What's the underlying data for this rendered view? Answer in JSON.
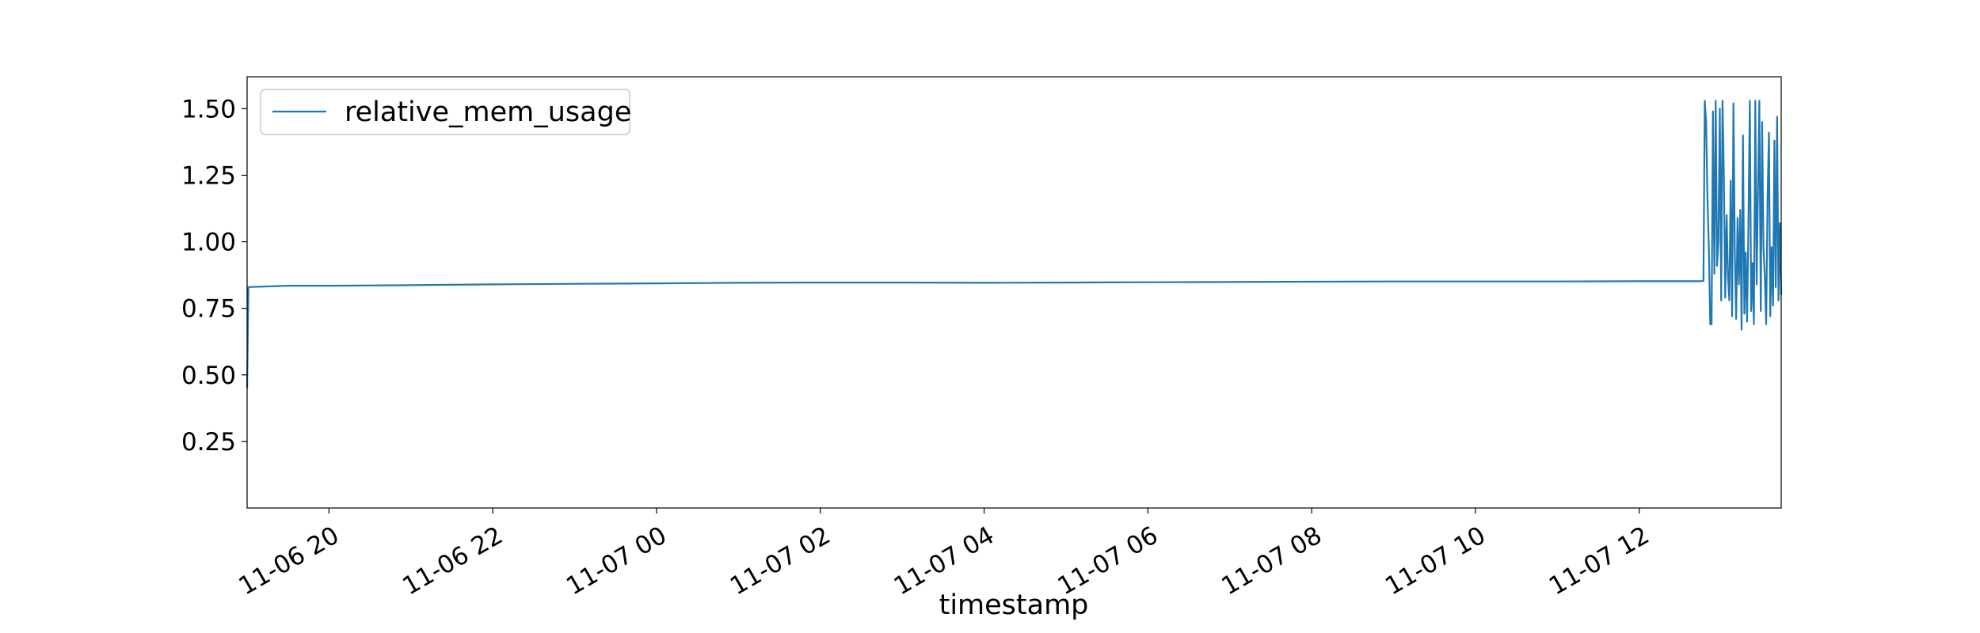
{
  "chart_data": {
    "type": "line",
    "title": "",
    "xlabel": "timestamp",
    "ylabel": "",
    "xlim": [
      "2024-11-06 19:00",
      "2024-11-07 13:44"
    ],
    "ylim": [
      0.0,
      1.62
    ],
    "grid": false,
    "legend": {
      "position": "top-left",
      "entries": [
        "relative_mem_usage"
      ]
    },
    "x_ticks": [
      {
        "value": "2024-11-06 20:00",
        "label": "11-06 20"
      },
      {
        "value": "2024-11-06 22:00",
        "label": "11-06 22"
      },
      {
        "value": "2024-11-07 00:00",
        "label": "11-07 00"
      },
      {
        "value": "2024-11-07 02:00",
        "label": "11-07 02"
      },
      {
        "value": "2024-11-07 04:00",
        "label": "11-07 04"
      },
      {
        "value": "2024-11-07 06:00",
        "label": "11-07 06"
      },
      {
        "value": "2024-11-07 08:00",
        "label": "11-07 08"
      },
      {
        "value": "2024-11-07 10:00",
        "label": "11-07 10"
      },
      {
        "value": "2024-11-07 12:00",
        "label": "11-07 12"
      }
    ],
    "y_ticks": [
      {
        "value": 0.25,
        "label": "0.25"
      },
      {
        "value": 0.5,
        "label": "0.50"
      },
      {
        "value": 0.75,
        "label": "0.75"
      },
      {
        "value": 1.0,
        "label": "1.00"
      },
      {
        "value": 1.25,
        "label": "1.25"
      },
      {
        "value": 1.5,
        "label": "1.50"
      }
    ],
    "series": [
      {
        "name": "relative_mem_usage",
        "color": "#1f77b4",
        "x": [
          "2024-11-06 19:00",
          "2024-11-06 19:01",
          "2024-11-06 19:30",
          "2024-11-06 20:00",
          "2024-11-06 21:00",
          "2024-11-06 22:00",
          "2024-11-06 23:00",
          "2024-11-07 00:00",
          "2024-11-07 01:00",
          "2024-11-07 02:00",
          "2024-11-07 03:00",
          "2024-11-07 04:00",
          "2024-11-07 05:00",
          "2024-11-07 06:00",
          "2024-11-07 07:00",
          "2024-11-07 08:00",
          "2024-11-07 09:00",
          "2024-11-07 10:00",
          "2024-11-07 11:00",
          "2024-11-07 12:00",
          "2024-11-07 12:45",
          "2024-11-07 12:47",
          "2024-11-07 12:48",
          "2024-11-07 12:49",
          "2024-11-07 12:50",
          "2024-11-07 12:51",
          "2024-11-07 12:52",
          "2024-11-07 12:53",
          "2024-11-07 12:54",
          "2024-11-07 12:55",
          "2024-11-07 12:56",
          "2024-11-07 12:57",
          "2024-11-07 12:58",
          "2024-11-07 12:59",
          "2024-11-07 13:00",
          "2024-11-07 13:01",
          "2024-11-07 13:02",
          "2024-11-07 13:03",
          "2024-11-07 13:04",
          "2024-11-07 13:05",
          "2024-11-07 13:06",
          "2024-11-07 13:07",
          "2024-11-07 13:08",
          "2024-11-07 13:09",
          "2024-11-07 13:10",
          "2024-11-07 13:11",
          "2024-11-07 13:12",
          "2024-11-07 13:13",
          "2024-11-07 13:14",
          "2024-11-07 13:15",
          "2024-11-07 13:16",
          "2024-11-07 13:17",
          "2024-11-07 13:18",
          "2024-11-07 13:19",
          "2024-11-07 13:20",
          "2024-11-07 13:21",
          "2024-11-07 13:22",
          "2024-11-07 13:23",
          "2024-11-07 13:24",
          "2024-11-07 13:25",
          "2024-11-07 13:26",
          "2024-11-07 13:27",
          "2024-11-07 13:28",
          "2024-11-07 13:29",
          "2024-11-07 13:30",
          "2024-11-07 13:31",
          "2024-11-07 13:32",
          "2024-11-07 13:33",
          "2024-11-07 13:34",
          "2024-11-07 13:35",
          "2024-11-07 13:36",
          "2024-11-07 13:37",
          "2024-11-07 13:38",
          "2024-11-07 13:39",
          "2024-11-07 13:40",
          "2024-11-07 13:41",
          "2024-11-07 13:42",
          "2024-11-07 13:43",
          "2024-11-07 13:44"
        ],
        "y": [
          0.45,
          0.83,
          0.835,
          0.835,
          0.837,
          0.84,
          0.842,
          0.844,
          0.846,
          0.847,
          0.847,
          0.846,
          0.847,
          0.848,
          0.849,
          0.85,
          0.851,
          0.851,
          0.851,
          0.852,
          0.852,
          0.853,
          1.53,
          1.45,
          1.16,
          0.97,
          0.69,
          0.69,
          1.49,
          0.88,
          1.53,
          0.91,
          1.0,
          1.5,
          0.78,
          1.53,
          1.25,
          0.79,
          1.1,
          0.87,
          0.78,
          1.23,
          0.72,
          1.52,
          0.97,
          0.71,
          1.09,
          0.84,
          1.12,
          0.67,
          1.4,
          0.73,
          0.96,
          0.7,
          1.06,
          1.53,
          0.74,
          0.92,
          0.69,
          1.53,
          0.84,
          1.2,
          1.53,
          0.74,
          1.45,
          0.98,
          0.87,
          0.69,
          1.16,
          1.41,
          0.72,
          0.98,
          0.76,
          1.38,
          0.83,
          1.47,
          0.78,
          1.07,
          0.8
        ]
      }
    ]
  }
}
